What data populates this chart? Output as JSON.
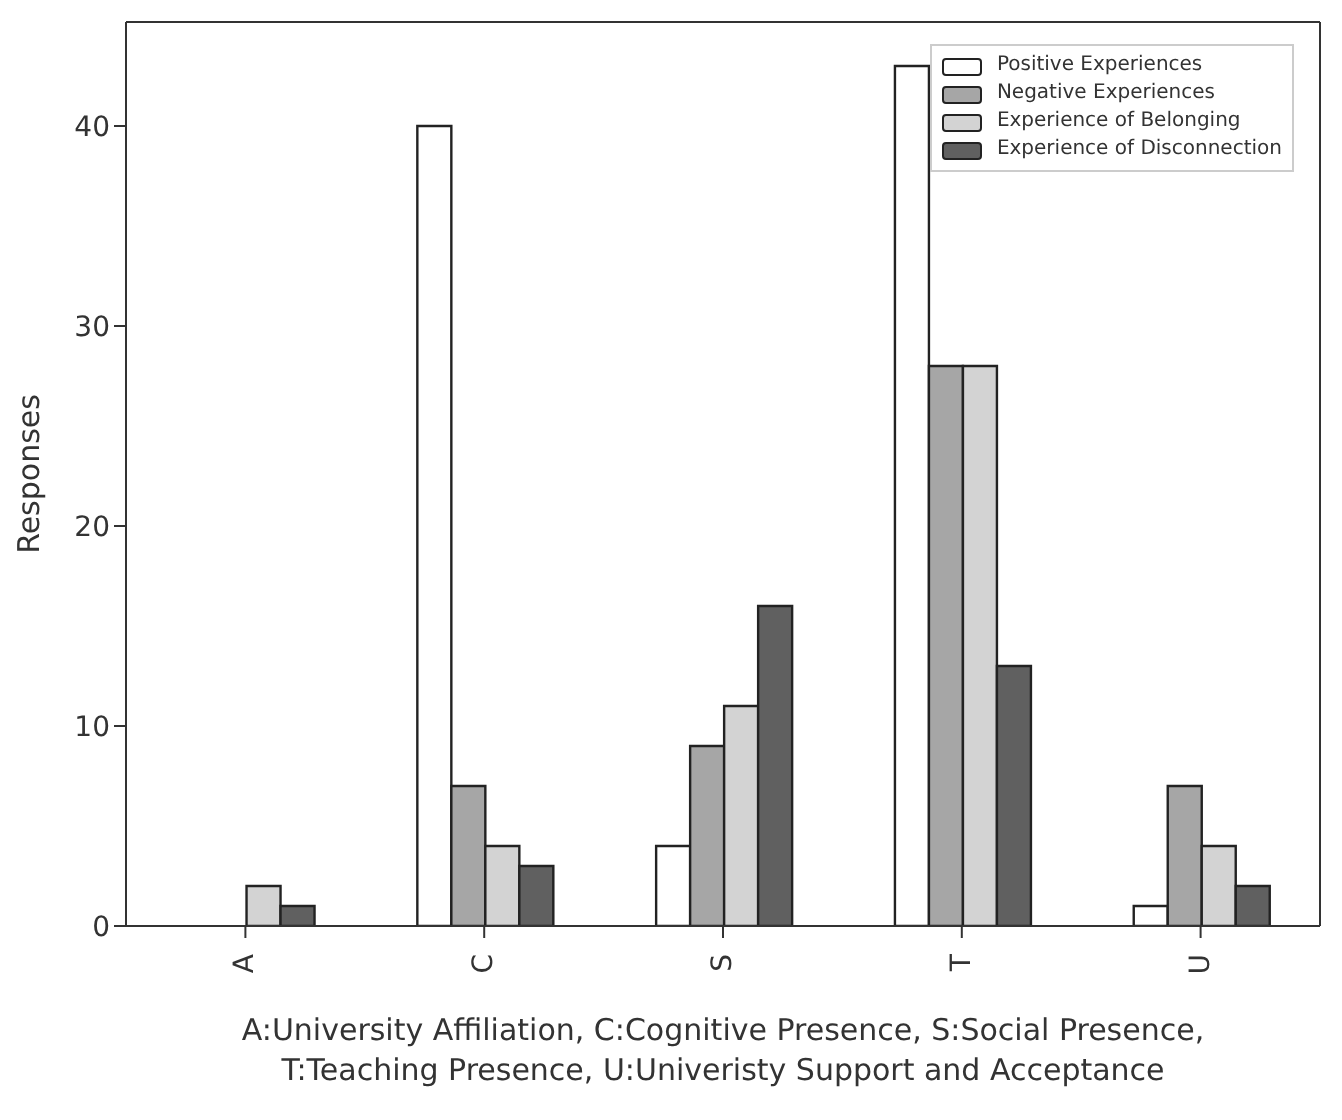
{
  "chart_data": {
    "type": "bar",
    "xlabel": "A:University Affiliation, C:Cognitive Presence, S:Social Presence,\nT:Teaching Presence, U:Univeristy Support and Acceptance",
    "ylabel": "Responses",
    "categories": [
      "A",
      "C",
      "S",
      "T",
      "U"
    ],
    "series": [
      {
        "name": "Positive Experiences",
        "color": "#ffffff",
        "values": [
          0,
          40,
          4,
          43,
          1
        ]
      },
      {
        "name": "Negative Experiences",
        "color": "#a6a6a6",
        "values": [
          0,
          7,
          9,
          28,
          7
        ]
      },
      {
        "name": "Experience of Belonging",
        "color": "#d3d3d3",
        "values": [
          2,
          4,
          11,
          28,
          4
        ]
      },
      {
        "name": "Experience of Disconnection",
        "color": "#606060",
        "values": [
          1,
          3,
          16,
          13,
          2
        ]
      }
    ],
    "ylim": [
      0,
      45.2
    ],
    "yticks": [
      0,
      10,
      20,
      30,
      40
    ],
    "grid": false,
    "legend": "top right"
  }
}
